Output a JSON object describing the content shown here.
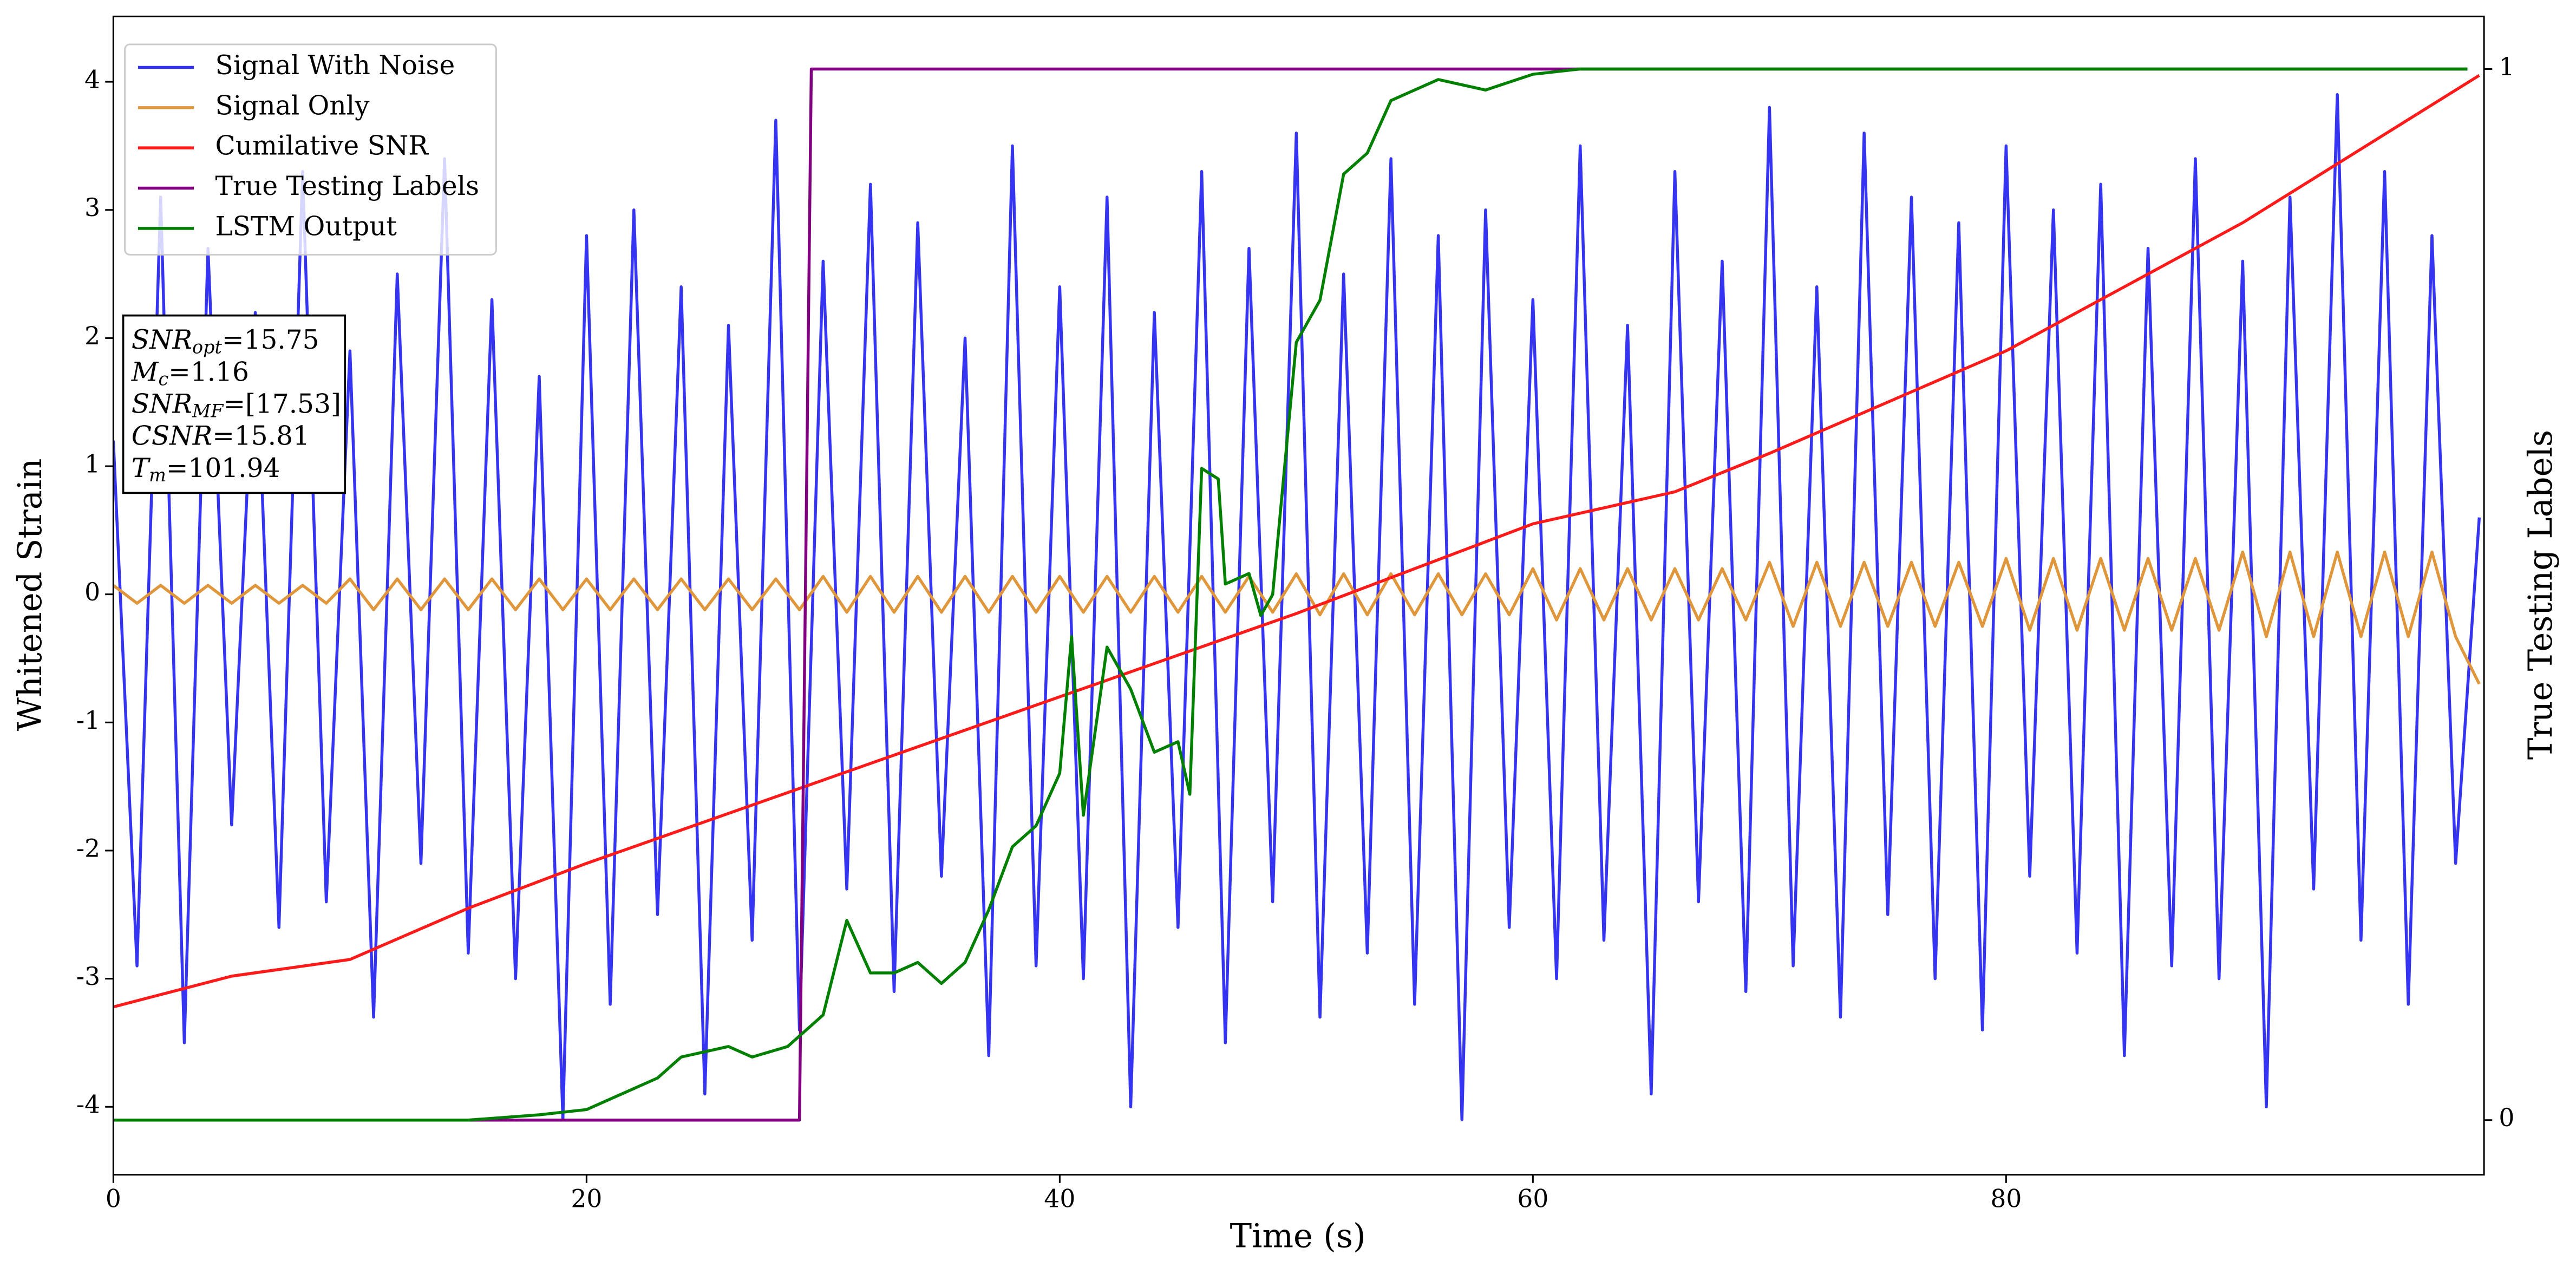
{
  "chart_data": {
    "type": "line",
    "x_label": "Time (s)",
    "y_label": "Whitened Strain",
    "y2_label": "True Testing Labels",
    "xlim": [
      0,
      100.2
    ],
    "xticks": [
      0,
      20,
      40,
      60,
      80
    ],
    "ylim": [
      -4.53,
      4.51
    ],
    "yticks": [
      -4,
      -3,
      -2,
      -1,
      0,
      1,
      2,
      3,
      4
    ],
    "y2lim": [
      -0.052,
      1.05
    ],
    "y2ticks": [
      0,
      1
    ],
    "legend": "upper left",
    "x": [
      0,
      1,
      2,
      3,
      4,
      5,
      6,
      7,
      8,
      9,
      10,
      11,
      12,
      13,
      14,
      15,
      16,
      17,
      18,
      19,
      20,
      21,
      22,
      23,
      24,
      25,
      26,
      27,
      28,
      29,
      30,
      31,
      32,
      33,
      34,
      35,
      36,
      37,
      38,
      39,
      40,
      41,
      42,
      43,
      44,
      45,
      46,
      47,
      48,
      49,
      50,
      51,
      52,
      53,
      54,
      55,
      56,
      57,
      58,
      59,
      60,
      61,
      62,
      63,
      64,
      65,
      66,
      67,
      68,
      69,
      70,
      71,
      72,
      73,
      74,
      75,
      76,
      77,
      78,
      79,
      80,
      81,
      82,
      83,
      84,
      85,
      86,
      87,
      88,
      89,
      90,
      91,
      92,
      93,
      94,
      95,
      96,
      97,
      98,
      99,
      100
    ],
    "series": [
      {
        "name": "Signal With Noise",
        "color": "#3434f2",
        "values": [
          1.2,
          -2.9,
          3.1,
          -3.5,
          2.7,
          -1.8,
          2.2,
          -2.6,
          3.3,
          -2.4,
          1.9,
          -3.3,
          2.5,
          -2.1,
          3.4,
          -2.8,
          2.3,
          -3.0,
          1.7,
          -4.1,
          2.8,
          -3.2,
          3.0,
          -2.5,
          2.4,
          -3.9,
          2.1,
          -2.7,
          3.7,
          -3.4,
          2.6,
          -2.3,
          3.2,
          -3.1,
          2.9,
          -2.2,
          2.0,
          -3.6,
          3.5,
          -2.9,
          2.4,
          -3.0,
          3.1,
          -4.0,
          2.2,
          -2.6,
          3.3,
          -3.5,
          2.7,
          -2.4,
          3.6,
          -3.3,
          2.5,
          -2.8,
          3.4,
          -3.2,
          2.8,
          -4.1,
          3.0,
          -2.6,
          2.3,
          -3.0,
          3.5,
          -2.7,
          2.1,
          -3.9,
          3.3,
          -2.4,
          2.6,
          -3.1,
          3.8,
          -2.9,
          2.4,
          -3.3,
          3.6,
          -2.5,
          3.1,
          -3.0,
          2.9,
          -3.4,
          3.5,
          -2.2,
          3.0,
          -2.8,
          3.2,
          -3.6,
          2.7,
          -2.9,
          3.4,
          -3.0,
          2.6,
          -4.0,
          3.1,
          -2.3,
          3.9,
          -2.7,
          3.3,
          -3.2,
          2.8,
          -2.1,
          0.6
        ]
      },
      {
        "name": "Signal Only",
        "color": "#e0963a",
        "values": [
          0.07,
          -0.07,
          0.07,
          -0.07,
          0.07,
          -0.07,
          0.07,
          -0.07,
          0.07,
          -0.07,
          0.12,
          -0.12,
          0.12,
          -0.12,
          0.12,
          -0.12,
          0.12,
          -0.12,
          0.12,
          -0.12,
          0.12,
          -0.12,
          0.12,
          -0.12,
          0.12,
          -0.12,
          0.12,
          -0.12,
          0.12,
          -0.12,
          0.14,
          -0.14,
          0.14,
          -0.14,
          0.14,
          -0.14,
          0.14,
          -0.14,
          0.14,
          -0.14,
          0.14,
          -0.14,
          0.14,
          -0.14,
          0.14,
          -0.14,
          0.14,
          -0.14,
          0.14,
          -0.14,
          0.16,
          -0.16,
          0.16,
          -0.16,
          0.16,
          -0.16,
          0.16,
          -0.16,
          0.16,
          -0.16,
          0.2,
          -0.2,
          0.2,
          -0.2,
          0.2,
          -0.2,
          0.2,
          -0.2,
          0.2,
          -0.2,
          0.25,
          -0.25,
          0.25,
          -0.25,
          0.25,
          -0.25,
          0.25,
          -0.25,
          0.25,
          -0.25,
          0.28,
          -0.28,
          0.28,
          -0.28,
          0.28,
          -0.28,
          0.28,
          -0.28,
          0.28,
          -0.28,
          0.33,
          -0.33,
          0.33,
          -0.33,
          0.33,
          -0.33,
          0.33,
          -0.33,
          0.33,
          -0.33,
          -0.7
        ]
      },
      {
        "name": "Cumilative SNR",
        "color": "#ff1a1a",
        "x": [
          0,
          5,
          10,
          15,
          20,
          30,
          40,
          50,
          60,
          66,
          70,
          80,
          90,
          100
        ],
        "values": [
          -3.22,
          -2.98,
          -2.85,
          -2.45,
          -2.1,
          -1.45,
          -0.8,
          -0.15,
          0.55,
          0.8,
          1.1,
          1.9,
          2.9,
          4.05
        ]
      },
      {
        "name": "True Testing Labels",
        "color": "#800080",
        "axis": "y2",
        "x": [
          0,
          29,
          29.5,
          99.5
        ],
        "values": [
          0,
          0,
          1,
          1
        ]
      },
      {
        "name": "LSTM Output",
        "color": "#008000",
        "axis": "y2",
        "x": [
          0,
          15,
          18,
          20,
          22,
          23,
          24,
          26,
          27,
          28.5,
          30,
          31,
          32,
          33,
          34,
          35,
          36,
          37,
          38,
          39,
          40,
          40.5,
          41,
          42,
          43,
          44,
          45,
          45.5,
          46,
          46.7,
          47,
          48,
          48.5,
          49,
          50,
          51,
          52,
          53,
          54,
          55,
          56,
          58,
          60,
          62,
          68,
          99.5
        ],
        "values": [
          0,
          0,
          0.005,
          0.01,
          0.03,
          0.04,
          0.06,
          0.07,
          0.06,
          0.07,
          0.1,
          0.19,
          0.14,
          0.14,
          0.15,
          0.13,
          0.15,
          0.2,
          0.26,
          0.28,
          0.33,
          0.46,
          0.29,
          0.45,
          0.41,
          0.35,
          0.36,
          0.31,
          0.62,
          0.61,
          0.51,
          0.52,
          0.48,
          0.5,
          0.74,
          0.78,
          0.9,
          0.92,
          0.97,
          0.98,
          0.99,
          0.98,
          0.995,
          1.0,
          1.0,
          1.0
        ]
      }
    ],
    "annotation": [
      {
        "text": "SNR",
        "sub": "opt",
        "value": "=15.75"
      },
      {
        "text": "M",
        "sub": "c",
        "value": "=1.16"
      },
      {
        "text": "SNR",
        "sub": "MF",
        "value": "=[17.53]"
      },
      {
        "text": "CSNR",
        "value": "=15.81"
      },
      {
        "text": "T",
        "sub": "m",
        "value": "=101.94"
      }
    ]
  }
}
